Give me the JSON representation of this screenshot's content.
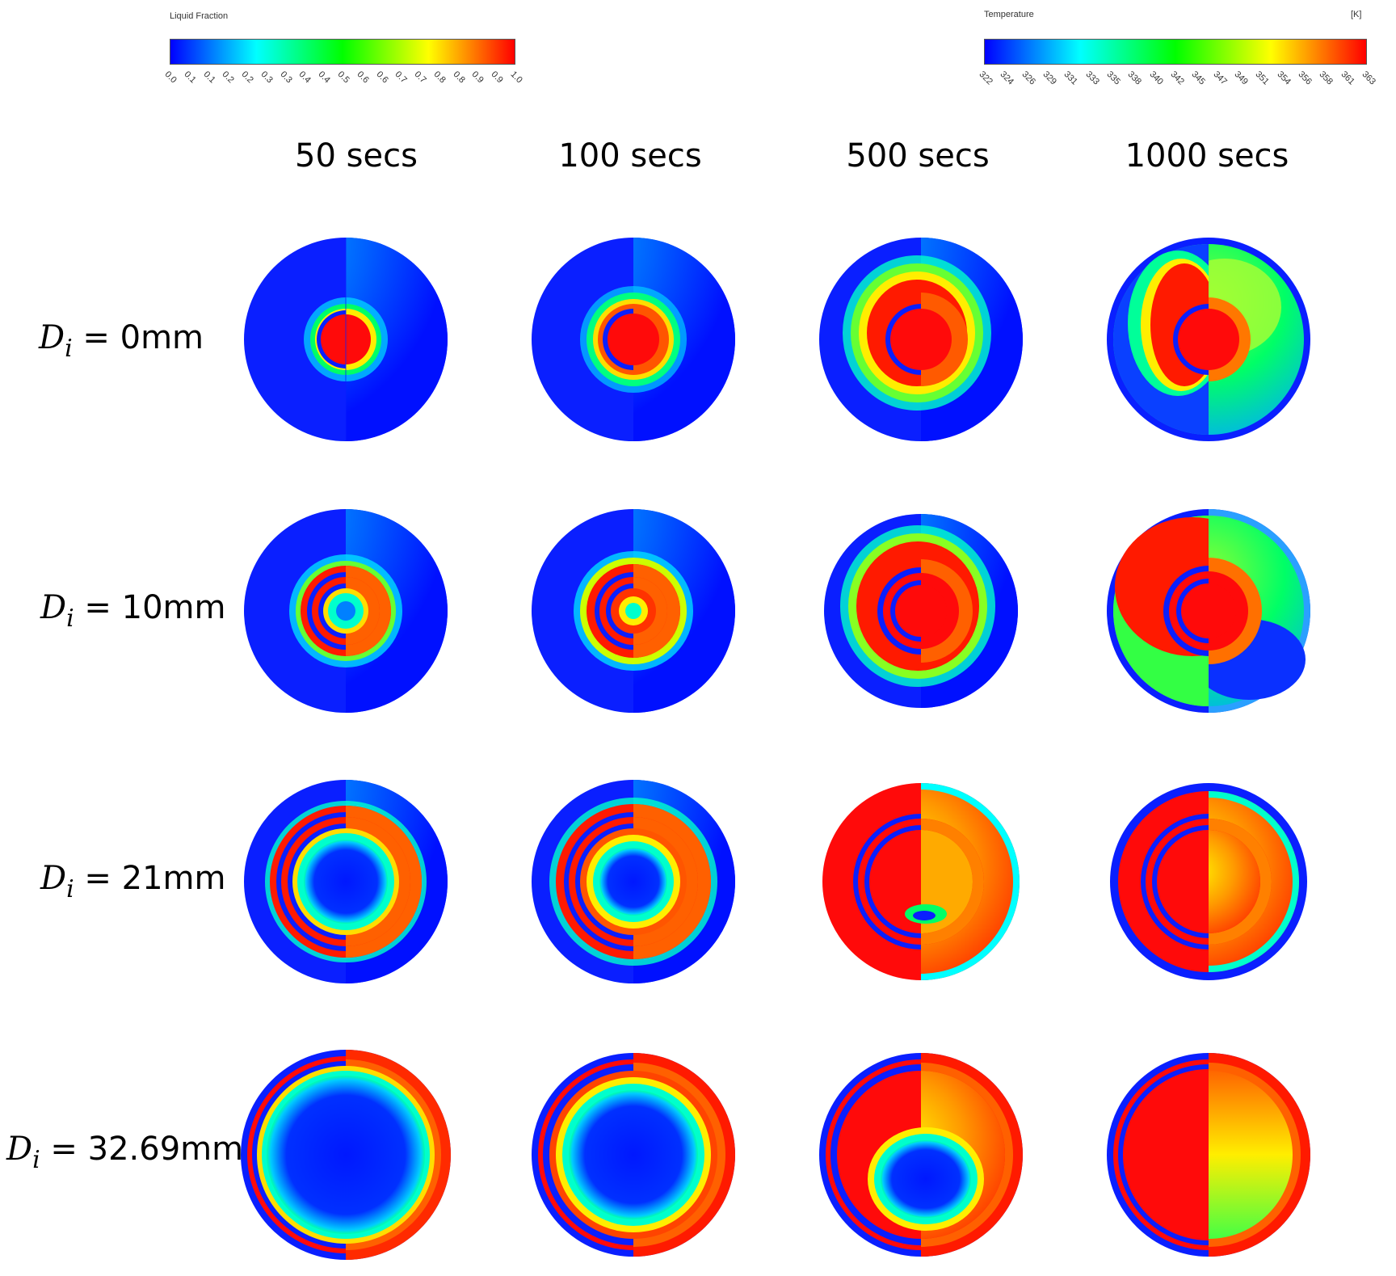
{
  "legends": {
    "liquid_fraction": {
      "title": "Liquid Fraction",
      "ticks": [
        "0.0",
        "0.1",
        "0.1",
        "0.2",
        "0.2",
        "0.3",
        "0.3",
        "0.4",
        "0.4",
        "0.5",
        "0.6",
        "0.6",
        "0.7",
        "0.7",
        "0.8",
        "0.8",
        "0.9",
        "0.9",
        "1.0"
      ]
    },
    "temperature": {
      "title": "Temperature",
      "unit": "[K]",
      "ticks": [
        "322",
        "324",
        "326",
        "329",
        "331",
        "333",
        "335",
        "338",
        "340",
        "342",
        "345",
        "347",
        "349",
        "351",
        "354",
        "356",
        "358",
        "361",
        "363"
      ]
    },
    "colormap": [
      "#0000ff",
      "#0080ff",
      "#00ffff",
      "#00ff80",
      "#00ff00",
      "#80ff00",
      "#ffff00",
      "#ff8000",
      "#ff0000"
    ]
  },
  "columns": [
    "50 secs",
    "100 secs",
    "500 secs",
    "1000 secs"
  ],
  "rows": [
    {
      "symbol": "D",
      "subscript": "i",
      "value": " = 0mm"
    },
    {
      "symbol": "D",
      "subscript": "i",
      "value": " = 10mm"
    },
    {
      "symbol": "D",
      "subscript": "i",
      "value": " = 21mm"
    },
    {
      "symbol": "D",
      "subscript": "i",
      "value": " = 32.69mm"
    }
  ]
}
